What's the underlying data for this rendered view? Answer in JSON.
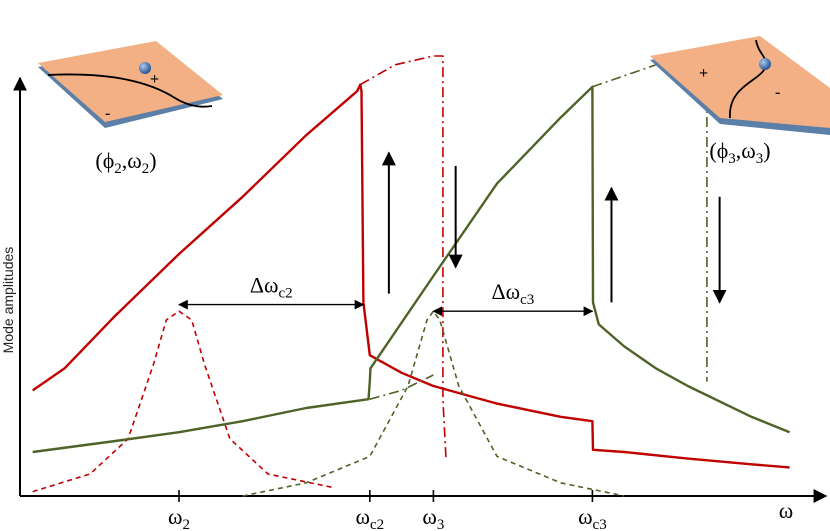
{
  "chart_data": {
    "type": "line",
    "title": "",
    "xlabel": "ω",
    "ylabel": "Mode amplitudes",
    "xticks": [
      {
        "label": "ω",
        "sub": "2",
        "x": 2
      },
      {
        "label": "ω",
        "sub": "c2",
        "x": 5
      },
      {
        "label": "ω",
        "sub": "3",
        "x": 6
      },
      {
        "label": "ω",
        "sub": "c3",
        "x": 8.5
      }
    ],
    "xlim": [
      -0.5,
      12.0
    ],
    "ylim": [
      0,
      10
    ],
    "grid": false,
    "colors": {
      "red": "#c00000",
      "green": "#4f6228",
      "black": "#000000",
      "plate": "#f3b084",
      "plate_edge": "#5b7fa6"
    },
    "series": [
      {
        "name": "",
        "color": "#c00000",
        "style": "solid",
        "x": [
          -0.3,
          0.2,
          1.0,
          2.0,
          3.0,
          4.0,
          4.8,
          4.85,
          4.87,
          4.9,
          5.0,
          5.5,
          6.0,
          7.0,
          8.0,
          8.5,
          8.51,
          9.0,
          10.0,
          11.0,
          11.6
        ],
        "y": [
          2.4,
          2.9,
          4.1,
          5.5,
          6.8,
          8.2,
          9.2,
          9.35,
          9.2,
          4.4,
          3.2,
          2.8,
          2.5,
          2.1,
          1.8,
          1.7,
          1.05,
          1.0,
          0.85,
          0.72,
          0.65
        ]
      },
      {
        "name": "",
        "color": "#c00000",
        "style": "dashdot",
        "x": [
          4.85,
          5.4,
          6.0,
          6.15,
          6.15,
          6.2
        ],
        "y": [
          9.35,
          9.8,
          10.0,
          10.0,
          2.2,
          0.8
        ]
      },
      {
        "name": "",
        "color": "#c00000",
        "style": "dashed",
        "x": [
          -0.3,
          0.6,
          1.2,
          1.6,
          1.8,
          2.0,
          2.2,
          2.4,
          2.8,
          3.4,
          4.4
        ],
        "y": [
          0.1,
          0.5,
          1.3,
          3.0,
          4.0,
          4.2,
          4.0,
          3.0,
          1.3,
          0.5,
          0.2
        ]
      },
      {
        "name": "",
        "color": "#4f6228",
        "style": "solid",
        "x": [
          -0.3,
          1.0,
          2.0,
          3.0,
          4.0,
          4.98,
          5.0,
          5.01,
          6.0,
          7.0,
          8.0,
          8.5,
          8.51,
          8.6,
          9.0,
          9.5,
          10.0,
          11.0,
          11.6
        ],
        "y": [
          1.0,
          1.25,
          1.45,
          1.7,
          2.0,
          2.2,
          2.6,
          2.9,
          5.0,
          7.1,
          8.6,
          9.3,
          4.4,
          3.9,
          3.4,
          2.9,
          2.5,
          1.8,
          1.45
        ]
      },
      {
        "name": "",
        "color": "#4f6228",
        "style": "dashdot",
        "x": [
          5.0,
          5.5,
          6.0
        ],
        "y": [
          2.2,
          2.4,
          2.75
        ]
      },
      {
        "name": "",
        "color": "#4f6228",
        "style": "dashdot",
        "x": [
          8.5,
          9.5,
          10.2,
          10.3,
          10.3,
          10.3
        ],
        "y": [
          9.3,
          9.8,
          10.0,
          10.0,
          9.2,
          2.6
        ]
      },
      {
        "name": "",
        "color": "#4f6228",
        "style": "dashed",
        "x": [
          3.0,
          4.0,
          5.0,
          5.6,
          5.9,
          6.0,
          6.1,
          6.4,
          7.0,
          8.0,
          9.0
        ],
        "y": [
          0.0,
          0.3,
          0.9,
          2.5,
          4.0,
          4.2,
          4.0,
          2.5,
          0.9,
          0.3,
          0.0
        ]
      }
    ],
    "annotations": [
      {
        "type": "doublearrow",
        "from": [
          2.0,
          4.35
        ],
        "to": [
          4.9,
          4.35
        ],
        "label": "Δω",
        "sub": "c2"
      },
      {
        "type": "doublearrow",
        "from": [
          6.0,
          4.2
        ],
        "to": [
          8.5,
          4.2
        ],
        "label": "Δω",
        "sub": "c3"
      },
      {
        "type": "arrow",
        "from": [
          5.3,
          4.6
        ],
        "to": [
          5.3,
          7.8
        ]
      },
      {
        "type": "arrow",
        "from": [
          6.35,
          7.5
        ],
        "to": [
          6.35,
          5.2
        ]
      },
      {
        "type": "arrow",
        "from": [
          8.8,
          4.4
        ],
        "to": [
          8.8,
          7.0
        ]
      },
      {
        "type": "arrow",
        "from": [
          10.5,
          6.8
        ],
        "to": [
          10.5,
          4.4
        ]
      },
      {
        "type": "text",
        "label": "(ϕ",
        "sub": "2",
        "label2": ",ω",
        "sub2": "2",
        "tail": ")",
        "at": "top-left"
      },
      {
        "type": "text",
        "label": "(ϕ",
        "sub": "3",
        "label2": ",ω",
        "sub2": "3",
        "tail": ")",
        "at": "top-right"
      }
    ],
    "insets": [
      {
        "name": "plate-left",
        "plus": "+",
        "minus": "-"
      },
      {
        "name": "plate-right",
        "plus": "+",
        "minus": "-"
      }
    ]
  }
}
